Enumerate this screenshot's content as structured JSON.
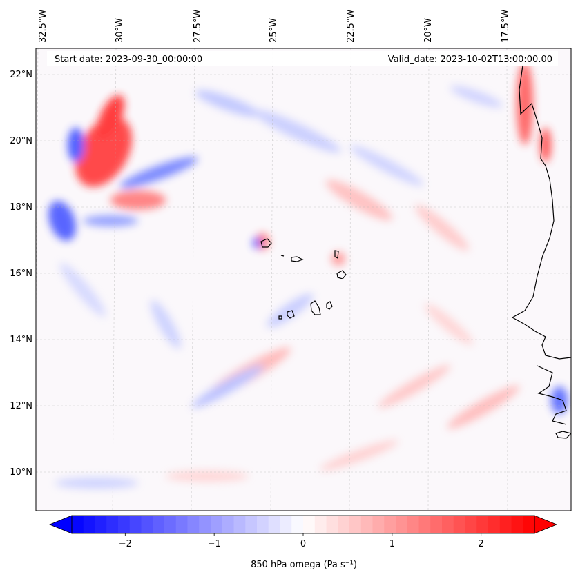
{
  "map": {
    "start_date": "Start date: 2023-09-30_00:00:00",
    "valid_date": "Valid_date: 2023-10-02T13:00:00.00",
    "lon_labels": [
      "32.5°W",
      "30°W",
      "27.5°W",
      "25°W",
      "22.5°W",
      "20°W",
      "17.5°W"
    ],
    "lat_labels": [
      "22°N",
      "20°N",
      "18°N",
      "16°N",
      "14°N",
      "12°N",
      "10°N"
    ],
    "gridlines": true,
    "features": [
      "Cape Verde islands coastline",
      "West African coastline"
    ]
  },
  "colorbar": {
    "label": "850 hPa omega (Pa s⁻¹)",
    "ticks": [
      "−2",
      "−1",
      "0",
      "1",
      "2"
    ],
    "tick_values": [
      -2,
      -1,
      0,
      1,
      2
    ],
    "range": [
      -2.6,
      2.6
    ],
    "colormap": "bwr",
    "colors": {
      "min": "#0000ff",
      "mid": "#ffffff",
      "max": "#ff0000"
    }
  }
}
